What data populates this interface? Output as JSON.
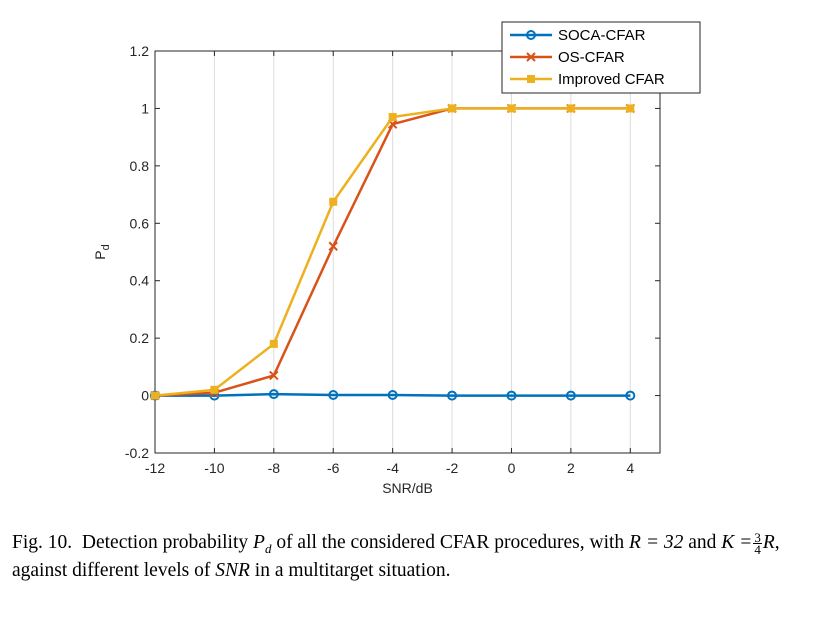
{
  "chart_data": {
    "type": "line",
    "x": [
      -12,
      -10,
      -8,
      -6,
      -4,
      -2,
      0,
      2,
      4
    ],
    "xlim": [
      -12,
      5
    ],
    "ylim": [
      -0.2,
      1.2
    ],
    "xticks": [
      "-12",
      "-10",
      "-8",
      "-6",
      "-4",
      "-2",
      "0",
      "2",
      "4"
    ],
    "yticks": [
      "-0.2",
      "0",
      "0.2",
      "0.4",
      "0.6",
      "0.8",
      "1",
      "1.2"
    ],
    "xlabel": "SNR/dB",
    "ylabel": "P",
    "ylabel_sub": "d",
    "grid": "vertical",
    "legend_position": "top-right",
    "series": [
      {
        "name": "SOCA-CFAR",
        "color": "#0072bd",
        "marker": "circle",
        "values": [
          0.0,
          0.0,
          0.005,
          0.002,
          0.002,
          0.0,
          0.0,
          0.0,
          0.0
        ]
      },
      {
        "name": "OS-CFAR",
        "color": "#d95319",
        "marker": "x",
        "values": [
          0.0,
          0.01,
          0.07,
          0.52,
          0.945,
          1.0,
          1.0,
          1.0,
          1.0
        ]
      },
      {
        "name": "Improved CFAR",
        "color": "#edb120",
        "marker": "square",
        "values": [
          0.0,
          0.02,
          0.18,
          0.675,
          0.97,
          1.0,
          1.0,
          1.0,
          1.0
        ]
      }
    ]
  },
  "caption": {
    "fig": "Fig. 10.",
    "t1": "Detection probability",
    "pd_main": "P",
    "pd_sub": "d",
    "t2": "of all the considered CFAR procedures, with",
    "r_eq": "R = 32",
    "and": "and",
    "k_eq": "K =",
    "frac_num": "3",
    "frac_den": "4",
    "r_after": "R",
    "t3": ", against different levels of",
    "snr": "SNR",
    "t4": "in a multitarget situation."
  }
}
